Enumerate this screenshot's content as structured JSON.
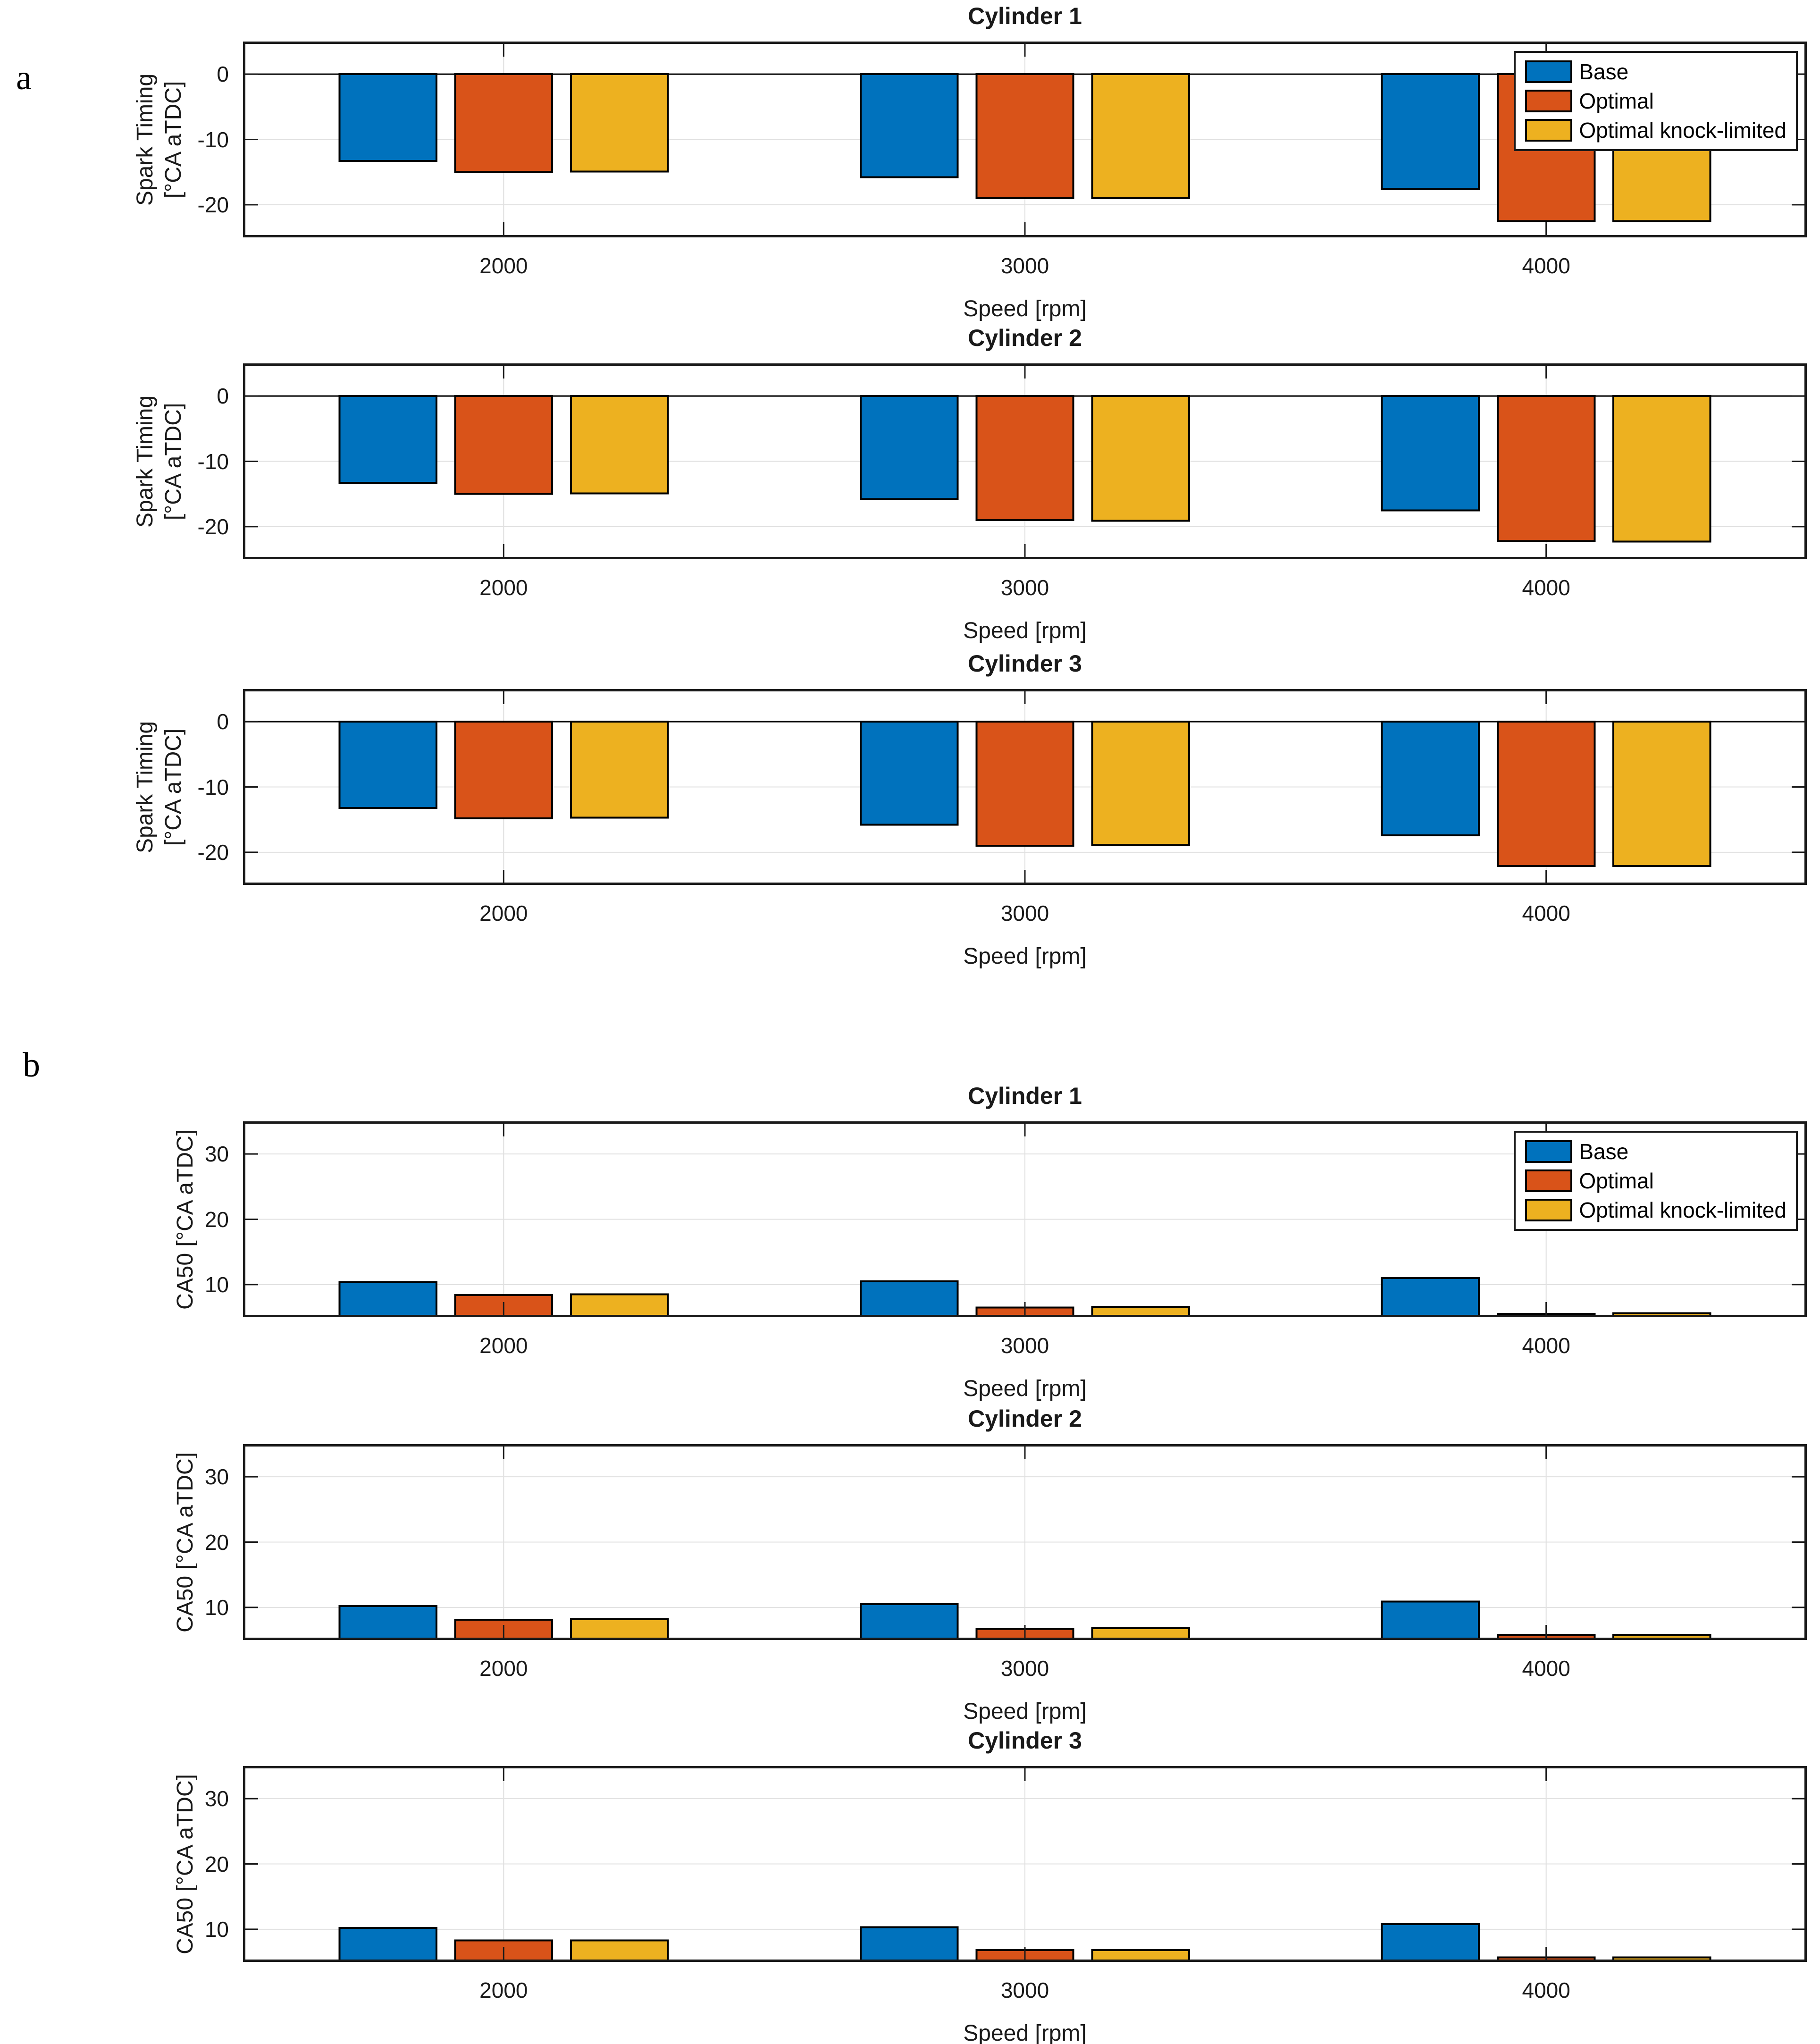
{
  "figure": {
    "panel_a_label": "a",
    "panel_b_label": "b"
  },
  "colors": {
    "base": "#0072BD",
    "optimal": "#D95319",
    "optimal_knock_limited": "#EDB120",
    "grid": "#E0E0E0",
    "axis": "#1A1A1A",
    "bar_edge": "#000000"
  },
  "legend": {
    "entries": [
      "Base",
      "Optimal",
      "Optimal knock-limited"
    ]
  },
  "chart_data": [
    {
      "id": "a1",
      "panel": "a",
      "type": "bar",
      "title": "Cylinder 1",
      "xlabel": "Speed [rpm]",
      "ylabel": "Spark Timing\n[°CA aTDC]",
      "categories": [
        2000,
        3000,
        4000
      ],
      "xlim": [
        1500,
        4500
      ],
      "ylim": [
        -25,
        5
      ],
      "yticks": [
        0,
        -10,
        -20
      ],
      "baseline": 0,
      "grid": true,
      "legend": true,
      "legend_position": "top-right",
      "series": [
        {
          "name": "Base",
          "color": "base",
          "values": [
            -13.3,
            -15.8,
            -17.6
          ]
        },
        {
          "name": "Optimal",
          "color": "optimal",
          "values": [
            -15.0,
            -19.0,
            -22.5
          ]
        },
        {
          "name": "Optimal knock-limited",
          "color": "optimal_knock_limited",
          "values": [
            -14.9,
            -19.0,
            -22.5
          ]
        }
      ]
    },
    {
      "id": "a2",
      "panel": "a",
      "type": "bar",
      "title": "Cylinder 2",
      "xlabel": "Speed [rpm]",
      "ylabel": "Spark Timing\n[°CA aTDC]",
      "categories": [
        2000,
        3000,
        4000
      ],
      "xlim": [
        1500,
        4500
      ],
      "ylim": [
        -25,
        5
      ],
      "yticks": [
        0,
        -10,
        -20
      ],
      "baseline": 0,
      "grid": true,
      "legend": false,
      "legend_position": "",
      "series": [
        {
          "name": "Base",
          "color": "base",
          "values": [
            -13.3,
            -15.8,
            -17.5
          ]
        },
        {
          "name": "Optimal",
          "color": "optimal",
          "values": [
            -15.0,
            -19.0,
            -22.2
          ]
        },
        {
          "name": "Optimal knock-limited",
          "color": "optimal_knock_limited",
          "values": [
            -14.9,
            -19.1,
            -22.3
          ]
        }
      ]
    },
    {
      "id": "a3",
      "panel": "a",
      "type": "bar",
      "title": "Cylinder 3",
      "xlabel": "Speed [rpm]",
      "ylabel": "Spark Timing\n[°CA aTDC]",
      "categories": [
        2000,
        3000,
        4000
      ],
      "xlim": [
        1500,
        4500
      ],
      "ylim": [
        -25,
        5
      ],
      "yticks": [
        0,
        -10,
        -20
      ],
      "baseline": 0,
      "grid": true,
      "legend": false,
      "legend_position": "",
      "series": [
        {
          "name": "Base",
          "color": "base",
          "values": [
            -13.2,
            -15.8,
            -17.4
          ]
        },
        {
          "name": "Optimal",
          "color": "optimal",
          "values": [
            -14.8,
            -19.0,
            -22.1
          ]
        },
        {
          "name": "Optimal knock-limited",
          "color": "optimal_knock_limited",
          "values": [
            -14.7,
            -18.9,
            -22.1
          ]
        }
      ]
    },
    {
      "id": "b1",
      "panel": "b",
      "type": "bar",
      "title": "Cylinder 1",
      "xlabel": "Speed [rpm]",
      "ylabel": "CA50 [°CA aTDC]",
      "categories": [
        2000,
        3000,
        4000
      ],
      "xlim": [
        1500,
        4500
      ],
      "ylim": [
        5,
        35
      ],
      "yticks": [
        10,
        20,
        30
      ],
      "baseline": 5,
      "grid": true,
      "legend": true,
      "legend_position": "top-right",
      "series": [
        {
          "name": "Base",
          "color": "base",
          "values": [
            10.4,
            10.5,
            11.0
          ]
        },
        {
          "name": "Optimal",
          "color": "optimal",
          "values": [
            8.4,
            6.5,
            5.5
          ]
        },
        {
          "name": "Optimal knock-limited",
          "color": "optimal_knock_limited",
          "values": [
            8.5,
            6.6,
            5.6
          ]
        }
      ]
    },
    {
      "id": "b2",
      "panel": "b",
      "type": "bar",
      "title": "Cylinder 2",
      "xlabel": "Speed [rpm]",
      "ylabel": "CA50 [°CA aTDC]",
      "categories": [
        2000,
        3000,
        4000
      ],
      "xlim": [
        1500,
        4500
      ],
      "ylim": [
        5,
        35
      ],
      "yticks": [
        10,
        20,
        30
      ],
      "baseline": 5,
      "grid": true,
      "legend": false,
      "legend_position": "",
      "series": [
        {
          "name": "Base",
          "color": "base",
          "values": [
            10.2,
            10.5,
            10.9
          ]
        },
        {
          "name": "Optimal",
          "color": "optimal",
          "values": [
            8.1,
            6.7,
            5.8
          ]
        },
        {
          "name": "Optimal knock-limited",
          "color": "optimal_knock_limited",
          "values": [
            8.2,
            6.8,
            5.8
          ]
        }
      ]
    },
    {
      "id": "b3",
      "panel": "b",
      "type": "bar",
      "title": "Cylinder 3",
      "xlabel": "Speed [rpm]",
      "ylabel": "CA50 [°CA aTDC]",
      "categories": [
        2000,
        3000,
        4000
      ],
      "xlim": [
        1500,
        4500
      ],
      "ylim": [
        5,
        35
      ],
      "yticks": [
        10,
        20,
        30
      ],
      "baseline": 5,
      "grid": true,
      "legend": false,
      "legend_position": "",
      "series": [
        {
          "name": "Base",
          "color": "base",
          "values": [
            10.2,
            10.3,
            10.8
          ]
        },
        {
          "name": "Optimal",
          "color": "optimal",
          "values": [
            8.3,
            6.8,
            5.7
          ]
        },
        {
          "name": "Optimal knock-limited",
          "color": "optimal_knock_limited",
          "values": [
            8.3,
            6.8,
            5.7
          ]
        }
      ]
    }
  ]
}
